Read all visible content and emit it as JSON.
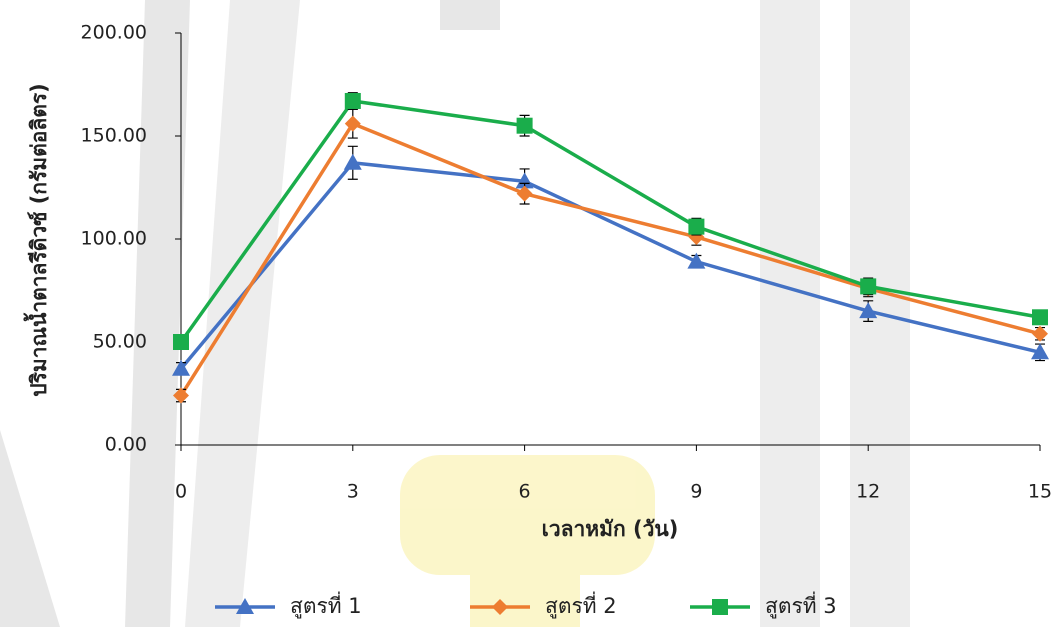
{
  "chart_data": {
    "type": "line",
    "x_label": "เวลาหมัก (วัน)",
    "y_label": "ปริมาณน้ำตาลรีดิวซ์ (กรัมต่อลิตร)",
    "x": [
      0,
      3,
      6,
      9,
      12,
      15
    ],
    "xlim": [
      0,
      15
    ],
    "xticks": [
      0,
      3,
      6,
      9,
      12,
      15
    ],
    "ylim": [
      0,
      200
    ],
    "yticks": [
      {
        "value": 0,
        "label": "0.00"
      },
      {
        "value": 50,
        "label": "50.00"
      },
      {
        "value": 100,
        "label": "100.00"
      },
      {
        "value": 150,
        "label": "150.00"
      },
      {
        "value": 200,
        "label": "200.00"
      }
    ],
    "grid": false,
    "legend": "bottom",
    "series": [
      {
        "name": "สูตรที่ 1",
        "color": "#4472c4",
        "marker": "triangle",
        "values": [
          37,
          137,
          128,
          89,
          65,
          45
        ],
        "errors": [
          3,
          8,
          6,
          3,
          5,
          4
        ]
      },
      {
        "name": "สูตรที่ 2",
        "color": "#ed7d31",
        "marker": "diamond",
        "values": [
          24,
          156,
          122,
          101,
          76,
          54
        ],
        "errors": [
          3,
          7,
          5,
          4,
          4,
          3
        ]
      },
      {
        "name": "สูตรที่ 3",
        "color": "#1aad4b",
        "marker": "square",
        "values": [
          50,
          167,
          155,
          106,
          77,
          62
        ],
        "errors": [
          2,
          4,
          5,
          4,
          4,
          3
        ]
      }
    ]
  }
}
